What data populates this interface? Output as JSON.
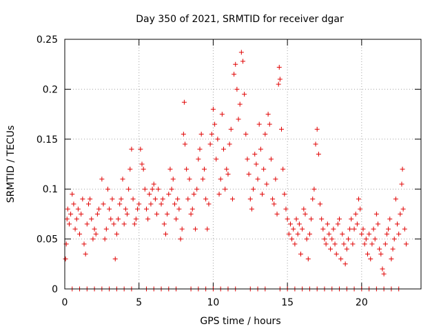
{
  "colors": {
    "series": "#e00000",
    "axis": "#000000",
    "grid": "#a0a0a0"
  },
  "chart_data": {
    "type": "scatter",
    "title": "Day 350 of 2021, SRMTID for receiver dgar",
    "xlabel": "GPS time / hours",
    "ylabel": "SRMTID / TECUs",
    "xlim": [
      0,
      24
    ],
    "ylim": [
      0,
      0.25
    ],
    "xticks": [
      0,
      5,
      10,
      15,
      20
    ],
    "xtick_labels": [
      "0",
      "5",
      "10",
      "15",
      "20"
    ],
    "yticks": [
      0,
      0.05,
      0.1,
      0.15,
      0.2,
      0.25
    ],
    "ytick_labels": [
      "0",
      "0.05",
      "0.1",
      "0.15",
      "0.2",
      "0.25"
    ],
    "grid": true,
    "marker": "+",
    "series": [
      {
        "name": "SRMTID",
        "points": [
          [
            0.05,
            0.03
          ],
          [
            0.1,
            0.045
          ],
          [
            0.15,
            0.07
          ],
          [
            0.2,
            0.08
          ],
          [
            0.3,
            0.065
          ],
          [
            0.4,
            0.075
          ],
          [
            0.5,
            0.095
          ],
          [
            0.6,
            0.085
          ],
          [
            0.7,
            0.06
          ],
          [
            0.8,
            0.07
          ],
          [
            0.9,
            0.08
          ],
          [
            1.0,
            0.055
          ],
          [
            1.1,
            0.075
          ],
          [
            1.2,
            0.09
          ],
          [
            1.3,
            0.045
          ],
          [
            1.4,
            0.035
          ],
          [
            1.5,
            0.065
          ],
          [
            1.6,
            0.085
          ],
          [
            1.7,
            0.09
          ],
          [
            1.8,
            0.07
          ],
          [
            1.9,
            0.05
          ],
          [
            2.0,
            0.06
          ],
          [
            2.1,
            0.055
          ],
          [
            2.2,
            0.075
          ],
          [
            2.3,
            0.08
          ],
          [
            2.5,
            0.11
          ],
          [
            2.6,
            0.085
          ],
          [
            2.7,
            0.05
          ],
          [
            2.8,
            0.06
          ],
          [
            2.9,
            0.1
          ],
          [
            3.0,
            0.08
          ],
          [
            3.1,
            0.07
          ],
          [
            3.2,
            0.09
          ],
          [
            3.3,
            0.065
          ],
          [
            3.4,
            0.03
          ],
          [
            3.5,
            0.055
          ],
          [
            3.6,
            0.07
          ],
          [
            3.7,
            0.085
          ],
          [
            3.8,
            0.09
          ],
          [
            3.9,
            0.11
          ],
          [
            4.0,
            0.065
          ],
          [
            4.1,
            0.08
          ],
          [
            4.2,
            0.075
          ],
          [
            4.3,
            0.1
          ],
          [
            4.4,
            0.12
          ],
          [
            4.5,
            0.14
          ],
          [
            4.6,
            0.09
          ],
          [
            4.7,
            0.065
          ],
          [
            4.8,
            0.07
          ],
          [
            4.9,
            0.08
          ],
          [
            5.0,
            0.085
          ],
          [
            5.1,
            0.14
          ],
          [
            5.2,
            0.125
          ],
          [
            5.3,
            0.12
          ],
          [
            5.4,
            0.1
          ],
          [
            5.5,
            0.08
          ],
          [
            5.6,
            0.07
          ],
          [
            5.7,
            0.095
          ],
          [
            5.8,
            0.085
          ],
          [
            5.9,
            0.1
          ],
          [
            6.0,
            0.105
          ],
          [
            6.1,
            0.09
          ],
          [
            6.2,
            0.075
          ],
          [
            6.3,
            0.1
          ],
          [
            6.5,
            0.085
          ],
          [
            6.6,
            0.09
          ],
          [
            6.7,
            0.065
          ],
          [
            6.8,
            0.055
          ],
          [
            6.9,
            0.075
          ],
          [
            7.0,
            0.095
          ],
          [
            7.1,
            0.12
          ],
          [
            7.2,
            0.1
          ],
          [
            7.3,
            0.11
          ],
          [
            7.4,
            0.085
          ],
          [
            7.5,
            0.07
          ],
          [
            7.6,
            0.09
          ],
          [
            7.7,
            0.08
          ],
          [
            7.8,
            0.05
          ],
          [
            7.9,
            0.06
          ],
          [
            8.0,
            0.155
          ],
          [
            8.05,
            0.187
          ],
          [
            8.1,
            0.145
          ],
          [
            8.2,
            0.12
          ],
          [
            8.3,
            0.09
          ],
          [
            8.4,
            0.11
          ],
          [
            8.5,
            0.075
          ],
          [
            8.6,
            0.08
          ],
          [
            8.7,
            0.095
          ],
          [
            8.8,
            0.06
          ],
          [
            8.9,
            0.1
          ],
          [
            9.0,
            0.13
          ],
          [
            9.1,
            0.14
          ],
          [
            9.2,
            0.155
          ],
          [
            9.3,
            0.11
          ],
          [
            9.4,
            0.12
          ],
          [
            9.5,
            0.09
          ],
          [
            9.6,
            0.06
          ],
          [
            9.7,
            0.085
          ],
          [
            9.8,
            0.145
          ],
          [
            9.9,
            0.155
          ],
          [
            10.0,
            0.18
          ],
          [
            10.1,
            0.165
          ],
          [
            10.2,
            0.13
          ],
          [
            10.3,
            0.15
          ],
          [
            10.4,
            0.095
          ],
          [
            10.5,
            0.11
          ],
          [
            10.6,
            0.175
          ],
          [
            10.7,
            0.14
          ],
          [
            10.8,
            0.1
          ],
          [
            10.9,
            0.12
          ],
          [
            11.0,
            0.115
          ],
          [
            11.1,
            0.145
          ],
          [
            11.2,
            0.16
          ],
          [
            11.3,
            0.09
          ],
          [
            11.4,
            0.215
          ],
          [
            11.5,
            0.225
          ],
          [
            11.6,
            0.2
          ],
          [
            11.7,
            0.17
          ],
          [
            11.8,
            0.185
          ],
          [
            11.9,
            0.237
          ],
          [
            12.0,
            0.228
          ],
          [
            12.1,
            0.195
          ],
          [
            12.2,
            0.155
          ],
          [
            12.3,
            0.13
          ],
          [
            12.4,
            0.115
          ],
          [
            12.5,
            0.09
          ],
          [
            12.6,
            0.08
          ],
          [
            12.7,
            0.1
          ],
          [
            12.8,
            0.135
          ],
          [
            12.9,
            0.125
          ],
          [
            13.0,
            0.11
          ],
          [
            13.1,
            0.165
          ],
          [
            13.2,
            0.14
          ],
          [
            13.3,
            0.095
          ],
          [
            13.4,
            0.12
          ],
          [
            13.5,
            0.155
          ],
          [
            13.6,
            0.105
          ],
          [
            13.7,
            0.175
          ],
          [
            13.8,
            0.165
          ],
          [
            13.9,
            0.13
          ],
          [
            14.0,
            0.09
          ],
          [
            14.1,
            0.085
          ],
          [
            14.2,
            0.11
          ],
          [
            14.3,
            0.075
          ],
          [
            14.4,
            0.205
          ],
          [
            14.45,
            0.222
          ],
          [
            14.5,
            0.21
          ],
          [
            14.6,
            0.16
          ],
          [
            14.7,
            0.12
          ],
          [
            14.8,
            0.095
          ],
          [
            14.9,
            0.08
          ],
          [
            15.0,
            0.07
          ],
          [
            15.1,
            0.055
          ],
          [
            15.2,
            0.065
          ],
          [
            15.3,
            0.05
          ],
          [
            15.4,
            0.06
          ],
          [
            15.5,
            0.045
          ],
          [
            15.6,
            0.07
          ],
          [
            15.7,
            0.055
          ],
          [
            15.8,
            0.065
          ],
          [
            15.9,
            0.035
          ],
          [
            16.0,
            0.06
          ],
          [
            16.1,
            0.08
          ],
          [
            16.2,
            0.075
          ],
          [
            16.3,
            0.05
          ],
          [
            16.4,
            0.03
          ],
          [
            16.5,
            0.055
          ],
          [
            16.6,
            0.07
          ],
          [
            16.7,
            0.09
          ],
          [
            16.8,
            0.1
          ],
          [
            16.9,
            0.145
          ],
          [
            17.0,
            0.16
          ],
          [
            17.1,
            0.135
          ],
          [
            17.2,
            0.085
          ],
          [
            17.3,
            0.07
          ],
          [
            17.4,
            0.06
          ],
          [
            17.5,
            0.05
          ],
          [
            17.6,
            0.045
          ],
          [
            17.7,
            0.065
          ],
          [
            17.8,
            0.055
          ],
          [
            17.9,
            0.04
          ],
          [
            18.0,
            0.05
          ],
          [
            18.1,
            0.06
          ],
          [
            18.2,
            0.045
          ],
          [
            18.3,
            0.035
          ],
          [
            18.4,
            0.065
          ],
          [
            18.5,
            0.07
          ],
          [
            18.6,
            0.03
          ],
          [
            18.7,
            0.055
          ],
          [
            18.8,
            0.045
          ],
          [
            18.9,
            0.025
          ],
          [
            19.0,
            0.04
          ],
          [
            19.1,
            0.05
          ],
          [
            19.2,
            0.06
          ],
          [
            19.3,
            0.07
          ],
          [
            19.4,
            0.045
          ],
          [
            19.5,
            0.06
          ],
          [
            19.6,
            0.075
          ],
          [
            19.7,
            0.065
          ],
          [
            19.8,
            0.09
          ],
          [
            19.9,
            0.08
          ],
          [
            20.0,
            0.055
          ],
          [
            20.1,
            0.06
          ],
          [
            20.2,
            0.045
          ],
          [
            20.3,
            0.05
          ],
          [
            20.4,
            0.035
          ],
          [
            20.5,
            0.055
          ],
          [
            20.6,
            0.03
          ],
          [
            20.7,
            0.045
          ],
          [
            20.8,
            0.06
          ],
          [
            20.9,
            0.05
          ],
          [
            21.0,
            0.075
          ],
          [
            21.1,
            0.065
          ],
          [
            21.2,
            0.04
          ],
          [
            21.3,
            0.035
          ],
          [
            21.4,
            0.02
          ],
          [
            21.5,
            0.015
          ],
          [
            21.6,
            0.045
          ],
          [
            21.7,
            0.055
          ],
          [
            21.8,
            0.06
          ],
          [
            21.9,
            0.07
          ],
          [
            22.0,
            0.03
          ],
          [
            22.1,
            0.04
          ],
          [
            22.2,
            0.05
          ],
          [
            22.3,
            0.09
          ],
          [
            22.4,
            0.065
          ],
          [
            22.5,
            0.055
          ],
          [
            22.6,
            0.075
          ],
          [
            22.7,
            0.105
          ],
          [
            22.75,
            0.12
          ],
          [
            22.8,
            0.08
          ],
          [
            22.9,
            0.06
          ],
          [
            23.0,
            0.045
          ],
          [
            0.5,
            0.0
          ],
          [
            1.0,
            0.0
          ],
          [
            1.5,
            0.0
          ],
          [
            2.0,
            0.0
          ],
          [
            2.5,
            0.0
          ],
          [
            3.0,
            0.0
          ],
          [
            3.5,
            0.0
          ],
          [
            4.0,
            0.0
          ],
          [
            4.5,
            0.0
          ],
          [
            5.5,
            0.0
          ],
          [
            6.0,
            0.0
          ],
          [
            6.5,
            0.0
          ],
          [
            7.0,
            0.0
          ],
          [
            7.5,
            0.0
          ],
          [
            8.5,
            0.0
          ],
          [
            9.0,
            0.0
          ],
          [
            9.5,
            0.0
          ],
          [
            10.0,
            0.0
          ],
          [
            10.5,
            0.0
          ],
          [
            11.0,
            0.0
          ],
          [
            11.5,
            0.0
          ],
          [
            12.5,
            0.0
          ],
          [
            13.0,
            0.0
          ],
          [
            13.5,
            0.0
          ],
          [
            14.5,
            0.0
          ],
          [
            15.0,
            0.0
          ],
          [
            15.5,
            0.0
          ],
          [
            16.0,
            0.0
          ],
          [
            16.5,
            0.0
          ],
          [
            17.0,
            0.0
          ],
          [
            17.5,
            0.0
          ],
          [
            18.0,
            0.0
          ],
          [
            18.5,
            0.0
          ],
          [
            19.0,
            0.0
          ],
          [
            19.5,
            0.0
          ],
          [
            20.0,
            0.0
          ],
          [
            20.5,
            0.0
          ],
          [
            21.0,
            0.0
          ],
          [
            21.5,
            0.0
          ],
          [
            22.0,
            0.0
          ],
          [
            22.5,
            0.0
          ]
        ]
      }
    ]
  }
}
